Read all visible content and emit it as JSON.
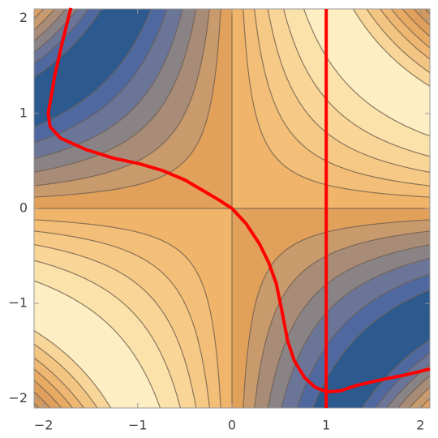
{
  "chart_data": {
    "type": "contour",
    "xlim": [
      -2.1,
      2.1
    ],
    "ylim": [
      -2.1,
      2.1
    ],
    "xticks": [
      {
        "value": -2,
        "label": "−2"
      },
      {
        "value": -1,
        "label": "−1"
      },
      0,
      1,
      2
    ],
    "yticks": [
      {
        "value": -2,
        "label": "−2"
      },
      {
        "value": -1,
        "label": "−1"
      },
      0,
      1,
      2
    ],
    "base": {
      "level": 0,
      "positive_color": "#f0b46a",
      "negative_color": "#e2a15a"
    },
    "positive_levels": [
      {
        "level": 0.25,
        "color": "#f3be77"
      },
      {
        "level": 0.5,
        "color": "#f6c986"
      },
      {
        "level": 0.8,
        "color": "#f9d597"
      },
      {
        "level": 1.15,
        "color": "#fbe1aa"
      },
      {
        "level": 1.6,
        "color": "#fdefc3"
      },
      {
        "level": 2.7,
        "color": "#f8d699"
      },
      {
        "level": 3.0,
        "color": "#f3c583"
      },
      {
        "level": 3.3,
        "color": "#eeb772"
      },
      {
        "level": 3.55,
        "color": "#e8ab64"
      },
      {
        "level": 3.8,
        "color": "#e0a05d"
      },
      {
        "level": 4.05,
        "color": "#d39a60"
      },
      {
        "level": 4.3,
        "color": "#c5945f"
      }
    ],
    "negative_levels": [
      {
        "level": -0.25,
        "color": "#c99a6c"
      },
      {
        "level": -0.5,
        "color": "#a98c78"
      },
      {
        "level": -0.8,
        "color": "#8a8386"
      },
      {
        "level": -1.1,
        "color": "#6b7597"
      },
      {
        "level": -1.45,
        "color": "#4f69a0"
      },
      {
        "level": -1.8,
        "color": "#2c5a8f"
      },
      {
        "level": -2.9,
        "color": "#4f69a0"
      },
      {
        "level": -3.2,
        "color": "#6b7597"
      },
      {
        "level": -3.45,
        "color": "#8a8386"
      },
      {
        "level": -3.7,
        "color": "#a98c78"
      },
      {
        "level": -3.95,
        "color": "#c99a6c"
      },
      {
        "level": -4.2,
        "color": "#dca064"
      }
    ],
    "line_color": "#6e5e4e",
    "series": [
      {
        "color": "#ff0000",
        "x": [
          -1.71,
          -1.8,
          -1.88,
          -1.95,
          -1.93,
          -1.82,
          -1.55,
          -1.26,
          -0.98,
          -0.74,
          -0.5,
          -0.31,
          -0.14,
          0,
          0.15,
          0.29,
          0.39,
          0.47,
          0.53,
          0.59,
          0.66,
          0.77,
          0.88,
          1,
          1.15,
          1.33,
          1.6,
          1.85,
          2.1
        ],
        "y": [
          2.11,
          1.75,
          1.4,
          1.0,
          0.86,
          0.74,
          0.62,
          0.53,
          0.47,
          0.4,
          0.3,
          0.19,
          0.09,
          0,
          -0.16,
          -0.37,
          -0.57,
          -0.79,
          -1.08,
          -1.39,
          -1.6,
          -1.78,
          -1.88,
          -1.93,
          -1.92,
          -1.86,
          -1.8,
          -1.75,
          -1.69
        ]
      },
      {
        "color": "#ff0000",
        "x": [
          1,
          1
        ],
        "y": [
          -2.1,
          2.1
        ]
      }
    ]
  }
}
